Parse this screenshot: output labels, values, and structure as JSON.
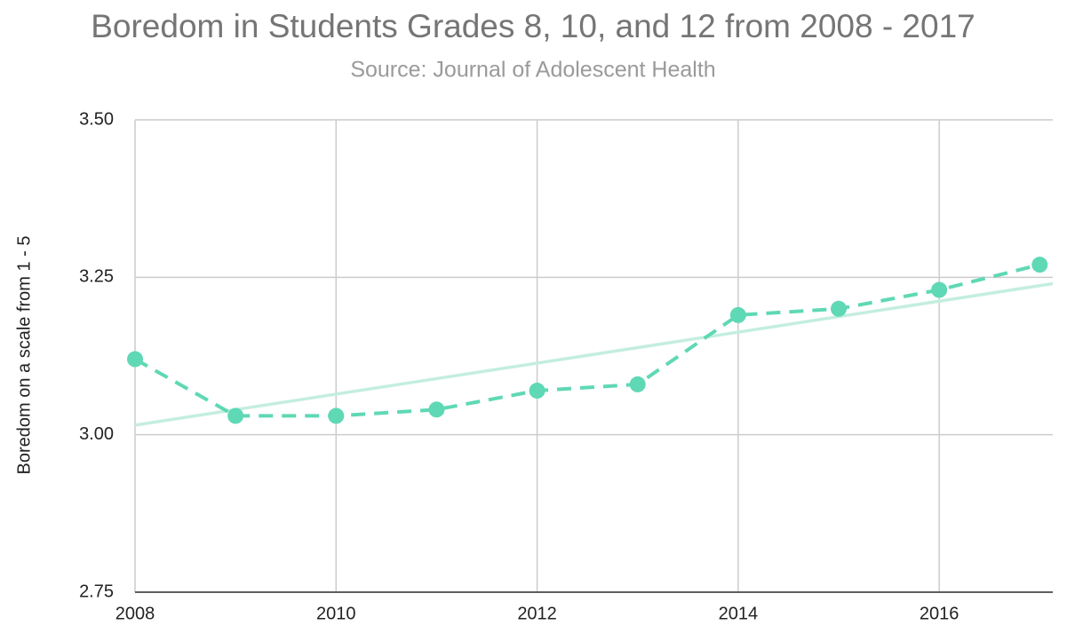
{
  "chart_data": {
    "type": "line",
    "title": "Boredom in Students Grades 8, 10, and 12 from 2008 - 2017",
    "subtitle": "Source: Journal of Adolescent Health",
    "y_label": "Boredom on a scale from 1 - 5",
    "x": [
      2008,
      2009,
      2010,
      2011,
      2012,
      2013,
      2014,
      2015,
      2016,
      2017
    ],
    "values": [
      3.12,
      3.03,
      3.03,
      3.04,
      3.07,
      3.08,
      3.19,
      3.2,
      3.23,
      3.27
    ],
    "color": "#5fd8b5",
    "line_style": "dashed",
    "trendline": true,
    "trendline_color": "#c4eedf",
    "xlim": [
      2008,
      2017.13
    ],
    "xticks": [
      2008,
      2010,
      2012,
      2014,
      2016
    ],
    "ylim": [
      2.75,
      3.5
    ],
    "yticks": [
      2.75,
      {
        "value": 3,
        "label": "3.00"
      },
      3.25,
      {
        "value": 3.5,
        "label": "3.50"
      }
    ],
    "grid": true
  }
}
